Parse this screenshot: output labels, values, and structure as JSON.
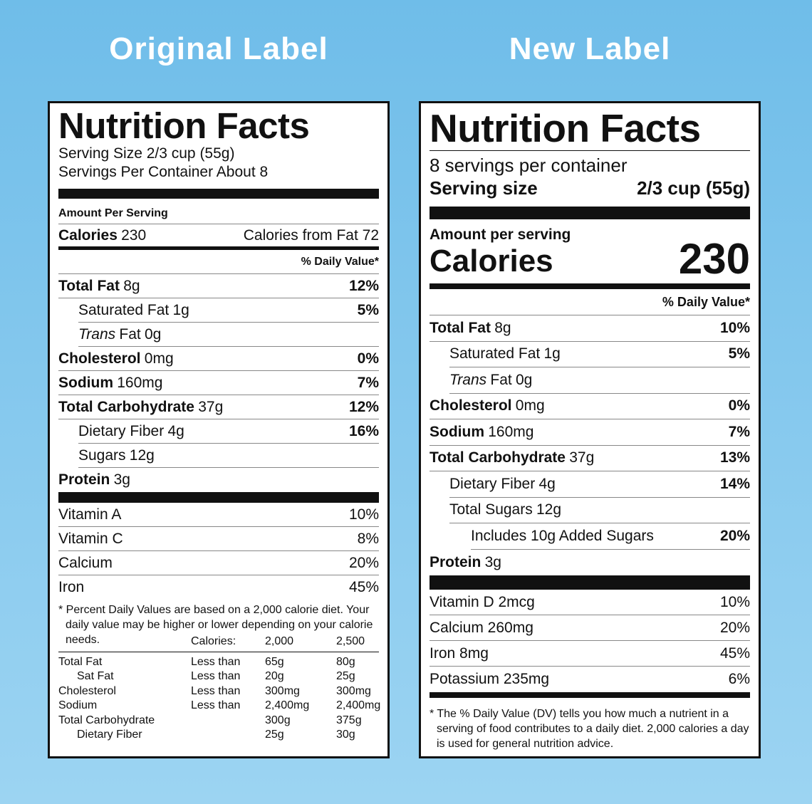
{
  "headings": {
    "left": "Original Label",
    "right": "New Label"
  },
  "original": {
    "title": "Nutrition Facts",
    "serving_size": "Serving Size 2/3 cup (55g)",
    "servings_per_container": "Servings Per Container About 8",
    "amount_per_serving": "Amount Per Serving",
    "calories": {
      "label": "Calories",
      "value": "230",
      "from_fat": "Calories from Fat 72"
    },
    "daily_value_header": "% Daily Value*",
    "nutrients": [
      {
        "name": "Total Fat",
        "amount": "8g",
        "dv": "12%"
      },
      {
        "name": "Saturated Fat",
        "amount": "1g",
        "dv": "5%"
      },
      {
        "name_italic": "Trans",
        "name": "Fat",
        "amount": "0g"
      },
      {
        "name": "Cholesterol",
        "amount": "0mg",
        "dv": "0%"
      },
      {
        "name": "Sodium",
        "amount": "160mg",
        "dv": "7%"
      },
      {
        "name": "Total Carbohydrate",
        "amount": "37g",
        "dv": "12%"
      },
      {
        "name": "Dietary Fiber",
        "amount": "4g",
        "dv": "16%"
      },
      {
        "name": "Sugars",
        "amount": "12g"
      },
      {
        "name": "Protein",
        "amount": "3g"
      }
    ],
    "vitamins": [
      {
        "name": "Vitamin A",
        "dv": "10%"
      },
      {
        "name": "Vitamin C",
        "dv": "8%"
      },
      {
        "name": "Calcium",
        "dv": "20%"
      },
      {
        "name": "Iron",
        "dv": "45%"
      }
    ],
    "footnote": "* Percent Daily Values are based on a 2,000 calorie diet. Your daily value may be higher or lower depending on your calorie needs.",
    "table": {
      "header": [
        "Calories:",
        "2,000",
        "2,500"
      ],
      "rows": [
        [
          "Total Fat",
          "Less than",
          "65g",
          "80g"
        ],
        [
          "Sat Fat",
          "Less than",
          "20g",
          "25g"
        ],
        [
          "Cholesterol",
          "Less than",
          "300mg",
          "300mg"
        ],
        [
          "Sodium",
          "Less than",
          "2,400mg",
          "2,400mg"
        ],
        [
          "Total Carbohydrate",
          null,
          "300g",
          "375g"
        ],
        [
          "Dietary Fiber",
          null,
          "25g",
          "30g"
        ]
      ]
    }
  },
  "new": {
    "title": "Nutrition Facts",
    "servings_per_container": "8 servings per container",
    "serving_size": {
      "label": "Serving size",
      "value": "2/3 cup (55g)"
    },
    "amount_per_serving": "Amount per serving",
    "calories": {
      "label": "Calories",
      "value": "230"
    },
    "daily_value_header": "% Daily Value*",
    "nutrients": [
      {
        "name": "Total Fat",
        "amount": "8g",
        "dv": "10%"
      },
      {
        "name": "Saturated Fat",
        "amount": "1g",
        "dv": "5%"
      },
      {
        "name_italic": "Trans",
        "name": "Fat",
        "amount": "0g"
      },
      {
        "name": "Cholesterol",
        "amount": "0mg",
        "dv": "0%"
      },
      {
        "name": "Sodium",
        "amount": "160mg",
        "dv": "7%"
      },
      {
        "name": "Total Carbohydrate",
        "amount": "37g",
        "dv": "13%"
      },
      {
        "name": "Dietary Fiber",
        "amount": "4g",
        "dv": "14%"
      },
      {
        "name": "Total Sugars",
        "amount": "12g"
      },
      {
        "name": "Includes 10g Added Sugars",
        "dv": "20%"
      },
      {
        "name": "Protein",
        "amount": "3g"
      }
    ],
    "vitamins": [
      {
        "name": "Vitamin D 2mcg",
        "dv": "10%"
      },
      {
        "name": "Calcium 260mg",
        "dv": "20%"
      },
      {
        "name": "Iron 8mg",
        "dv": "45%"
      },
      {
        "name": "Potassium 235mg",
        "dv": "6%"
      }
    ],
    "footnote": "* The % Daily Value (DV) tells you how much a nutrient in a serving of food contributes to a daily diet. 2,000 calories a day is used for general nutrition advice."
  }
}
